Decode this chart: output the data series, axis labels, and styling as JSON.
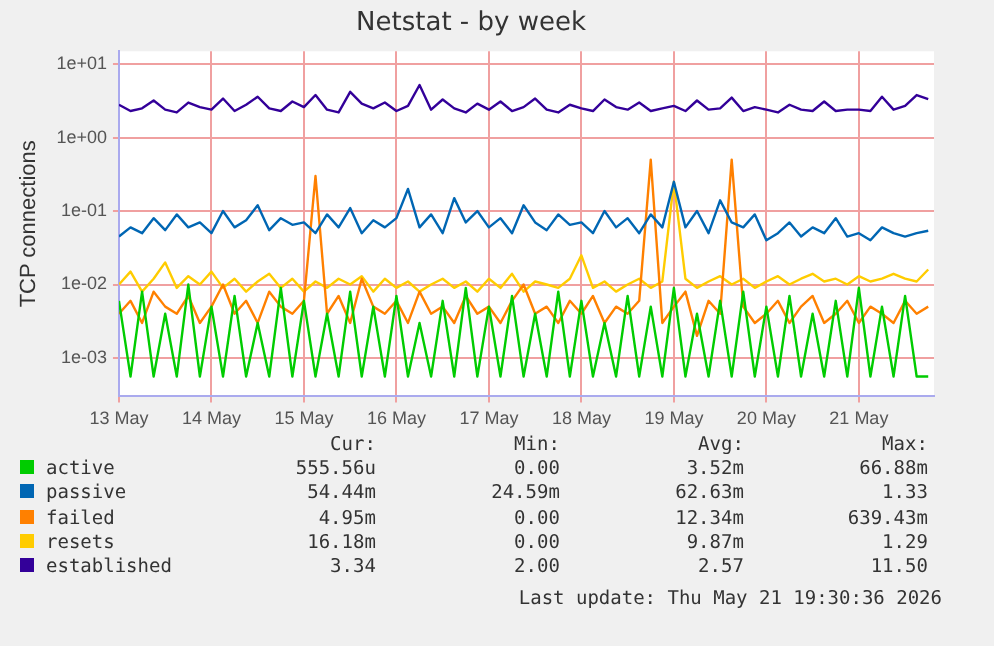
{
  "chart_data": {
    "type": "line",
    "title": "Netstat - by week",
    "ylabel": "TCP connections",
    "log": "y",
    "grid": true,
    "legend": "bottom",
    "line_style": "solid",
    "x": [
      "2026-05-13T00:00",
      "2026-05-13T03:00",
      "2026-05-13T06:00",
      "2026-05-13T09:00",
      "2026-05-13T12:00",
      "2026-05-13T15:00",
      "2026-05-13T18:00",
      "2026-05-13T21:00",
      "2026-05-14T00:00",
      "2026-05-14T03:00",
      "2026-05-14T06:00",
      "2026-05-14T09:00",
      "2026-05-14T12:00",
      "2026-05-14T15:00",
      "2026-05-14T18:00",
      "2026-05-14T21:00",
      "2026-05-15T00:00",
      "2026-05-15T03:00",
      "2026-05-15T06:00",
      "2026-05-15T09:00",
      "2026-05-15T12:00",
      "2026-05-15T15:00",
      "2026-05-15T18:00",
      "2026-05-15T21:00",
      "2026-05-16T00:00",
      "2026-05-16T03:00",
      "2026-05-16T06:00",
      "2026-05-16T09:00",
      "2026-05-16T12:00",
      "2026-05-16T15:00",
      "2026-05-16T18:00",
      "2026-05-16T21:00",
      "2026-05-17T00:00",
      "2026-05-17T03:00",
      "2026-05-17T06:00",
      "2026-05-17T09:00",
      "2026-05-17T12:00",
      "2026-05-17T15:00",
      "2026-05-17T18:00",
      "2026-05-17T21:00",
      "2026-05-18T00:00",
      "2026-05-18T03:00",
      "2026-05-18T06:00",
      "2026-05-18T09:00",
      "2026-05-18T12:00",
      "2026-05-18T15:00",
      "2026-05-18T18:00",
      "2026-05-18T21:00",
      "2026-05-19T00:00",
      "2026-05-19T03:00",
      "2026-05-19T06:00",
      "2026-05-19T09:00",
      "2026-05-19T12:00",
      "2026-05-19T15:00",
      "2026-05-19T18:00",
      "2026-05-19T21:00",
      "2026-05-20T00:00",
      "2026-05-20T03:00",
      "2026-05-20T06:00",
      "2026-05-20T09:00",
      "2026-05-20T12:00",
      "2026-05-20T15:00",
      "2026-05-20T18:00",
      "2026-05-20T21:00",
      "2026-05-21T00:00",
      "2026-05-21T03:00",
      "2026-05-21T06:00",
      "2026-05-21T09:00",
      "2026-05-21T12:00",
      "2026-05-21T15:00",
      "2026-05-21T18:00"
    ],
    "xlim": [
      "2026-05-13T00:00",
      "2026-05-21T19:30"
    ],
    "xticks": [
      {
        "value": "2026-05-13",
        "label": "13 May"
      },
      {
        "value": "2026-05-14",
        "label": "14 May"
      },
      {
        "value": "2026-05-15",
        "label": "15 May"
      },
      {
        "value": "2026-05-16",
        "label": "16 May"
      },
      {
        "value": "2026-05-17",
        "label": "17 May"
      },
      {
        "value": "2026-05-18",
        "label": "18 May"
      },
      {
        "value": "2026-05-19",
        "label": "19 May"
      },
      {
        "value": "2026-05-20",
        "label": "20 May"
      },
      {
        "value": "2026-05-21",
        "label": "21 May"
      }
    ],
    "ylim": [
      0.0003,
      15
    ],
    "yticks": [
      {
        "value": 0.001,
        "label": "1e-03"
      },
      {
        "value": 0.01,
        "label": "1e-02"
      },
      {
        "value": 0.1,
        "label": "1e-01"
      },
      {
        "value": 1,
        "label": "1e+00"
      },
      {
        "value": 10,
        "label": "1e+01"
      }
    ],
    "series": [
      {
        "name": "active",
        "color": "#00cc00",
        "values": [
          0.006,
          0.00056,
          0.008,
          0.00056,
          0.004,
          0.00056,
          0.01,
          0.00056,
          0.005,
          0.00056,
          0.007,
          0.00056,
          0.003,
          0.00056,
          0.009,
          0.00056,
          0.006,
          0.00056,
          0.004,
          0.00056,
          0.008,
          0.00056,
          0.005,
          0.00056,
          0.007,
          0.00056,
          0.003,
          0.00056,
          0.006,
          0.00056,
          0.009,
          0.00056,
          0.005,
          0.00056,
          0.007,
          0.00056,
          0.004,
          0.00056,
          0.008,
          0.00056,
          0.006,
          0.00056,
          0.003,
          0.00056,
          0.007,
          0.00056,
          0.005,
          0.00056,
          0.009,
          0.00056,
          0.004,
          0.00056,
          0.006,
          0.00056,
          0.008,
          0.00056,
          0.005,
          0.00056,
          0.007,
          0.00056,
          0.004,
          0.00056,
          0.006,
          0.00056,
          0.009,
          0.00056,
          0.005,
          0.00056,
          0.007,
          0.00056,
          0.00056
        ]
      },
      {
        "name": "passive",
        "color": "#0066b3",
        "values": [
          0.045,
          0.06,
          0.05,
          0.08,
          0.055,
          0.09,
          0.06,
          0.07,
          0.05,
          0.1,
          0.06,
          0.075,
          0.12,
          0.055,
          0.08,
          0.065,
          0.07,
          0.05,
          0.09,
          0.06,
          0.11,
          0.05,
          0.075,
          0.06,
          0.08,
          0.2,
          0.06,
          0.09,
          0.05,
          0.15,
          0.07,
          0.1,
          0.06,
          0.08,
          0.05,
          0.12,
          0.07,
          0.055,
          0.09,
          0.065,
          0.07,
          0.05,
          0.1,
          0.06,
          0.08,
          0.05,
          0.09,
          0.06,
          0.25,
          0.06,
          0.1,
          0.05,
          0.14,
          0.07,
          0.06,
          0.09,
          0.04,
          0.05,
          0.07,
          0.045,
          0.06,
          0.05,
          0.08,
          0.045,
          0.05,
          0.04,
          0.06,
          0.05,
          0.045,
          0.05,
          0.054
        ]
      },
      {
        "name": "failed",
        "color": "#ff8000",
        "values": [
          0.004,
          0.006,
          0.003,
          0.008,
          0.005,
          0.004,
          0.007,
          0.003,
          0.005,
          0.01,
          0.004,
          0.006,
          0.003,
          0.008,
          0.005,
          0.004,
          0.006,
          0.3,
          0.004,
          0.007,
          0.003,
          0.012,
          0.005,
          0.004,
          0.006,
          0.003,
          0.008,
          0.004,
          0.005,
          0.003,
          0.007,
          0.004,
          0.005,
          0.003,
          0.006,
          0.01,
          0.004,
          0.005,
          0.003,
          0.006,
          0.004,
          0.007,
          0.003,
          0.005,
          0.004,
          0.006,
          0.5,
          0.003,
          0.005,
          0.008,
          0.002,
          0.006,
          0.004,
          0.5,
          0.005,
          0.003,
          0.004,
          0.006,
          0.003,
          0.005,
          0.007,
          0.003,
          0.004,
          0.006,
          0.003,
          0.005,
          0.004,
          0.003,
          0.006,
          0.004,
          0.005
        ]
      },
      {
        "name": "resets",
        "color": "#ffcc00",
        "values": [
          0.01,
          0.015,
          0.008,
          0.012,
          0.02,
          0.009,
          0.013,
          0.01,
          0.015,
          0.009,
          0.012,
          0.008,
          0.011,
          0.014,
          0.009,
          0.012,
          0.008,
          0.011,
          0.009,
          0.012,
          0.01,
          0.013,
          0.008,
          0.012,
          0.009,
          0.011,
          0.008,
          0.01,
          0.012,
          0.009,
          0.011,
          0.008,
          0.012,
          0.009,
          0.014,
          0.008,
          0.011,
          0.01,
          0.009,
          0.012,
          0.025,
          0.009,
          0.011,
          0.008,
          0.01,
          0.012,
          0.009,
          0.011,
          0.25,
          0.012,
          0.009,
          0.011,
          0.013,
          0.01,
          0.012,
          0.009,
          0.011,
          0.013,
          0.01,
          0.012,
          0.014,
          0.011,
          0.012,
          0.01,
          0.013,
          0.011,
          0.012,
          0.014,
          0.012,
          0.011,
          0.016
        ]
      },
      {
        "name": "established",
        "color": "#330099",
        "values": [
          2.8,
          2.3,
          2.5,
          3.2,
          2.4,
          2.2,
          3.0,
          2.6,
          2.4,
          3.4,
          2.3,
          2.8,
          3.6,
          2.5,
          2.3,
          3.1,
          2.6,
          3.8,
          2.4,
          2.2,
          4.2,
          2.9,
          2.5,
          3.0,
          2.3,
          2.7,
          5.2,
          2.4,
          3.3,
          2.5,
          2.2,
          2.9,
          2.4,
          3.1,
          2.3,
          2.6,
          3.4,
          2.4,
          2.2,
          2.8,
          2.5,
          2.3,
          3.3,
          2.6,
          2.4,
          3.0,
          2.3,
          2.5,
          2.7,
          2.3,
          3.2,
          2.4,
          2.5,
          3.5,
          2.3,
          2.6,
          2.4,
          2.2,
          2.8,
          2.4,
          2.3,
          3.1,
          2.3,
          2.4,
          2.4,
          2.3,
          3.6,
          2.4,
          2.7,
          3.8,
          3.34
        ]
      }
    ],
    "annotations": [
      "Cur:",
      "Min:",
      "Avg:",
      "Max:",
      "555.56u",
      "0.00",
      "3.52m",
      "66.88m",
      "54.44m",
      "24.59m",
      "62.63m",
      "1.33",
      "4.95m",
      "0.00",
      "12.34m",
      "639.43m",
      "16.18m",
      "0.00",
      "9.87m",
      "1.29",
      "3.34",
      "2.00",
      "2.57",
      "11.50",
      "Last update: Thu May 21 19:30:36 2026"
    ]
  }
}
